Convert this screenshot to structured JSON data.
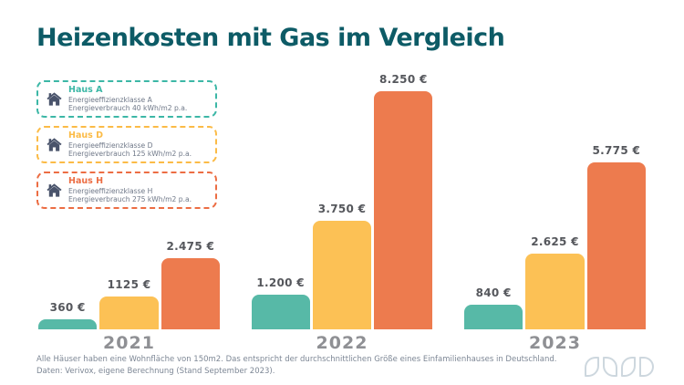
{
  "title": "Heizenkosten mit Gas im Vergleich",
  "colors": {
    "title": "#0d5b66",
    "house_icon": "#49536b",
    "value_label": "#55575c",
    "year_label": "#8f9094",
    "footer_text": "#7d8795",
    "logo": "#cdd7de",
    "background": "#ffffff"
  },
  "legend": {
    "items": [
      {
        "name": "Haus A",
        "line1": "Energieeffizienzklasse A",
        "line2": "Energieverbrauch 40 kWh/m2 p.a.",
        "color": "#3cb7a6"
      },
      {
        "name": "Haus D",
        "line1": "Energieeffizienzklasse D",
        "line2": "Energieverbrauch 125 kWh/m2 p.a.",
        "color": "#fbbb46"
      },
      {
        "name": "Haus H",
        "line1": "Energieeffizienzklasse H",
        "line2": "Energieverbrauch 275 kWh/m2 p.a.",
        "color": "#ec6d43"
      }
    ]
  },
  "chart_data": {
    "type": "bar",
    "title": "Heizenkosten mit Gas im Vergleich",
    "categories": [
      "2021",
      "2022",
      "2023"
    ],
    "series": [
      {
        "name": "Haus A",
        "color": "#57b9a7",
        "values": [
          360,
          1200,
          840
        ],
        "labels": [
          "360 €",
          "1.200 €",
          "840 €"
        ]
      },
      {
        "name": "Haus D",
        "color": "#fcc155",
        "values": [
          1125,
          3750,
          2625
        ],
        "labels": [
          "1125 €",
          "3.750 €",
          "2.625 €"
        ]
      },
      {
        "name": "Haus H",
        "color": "#ed7b4e",
        "values": [
          2475,
          8250,
          5775
        ],
        "labels": [
          "2.475 €",
          "8.250 €",
          "5.775 €"
        ]
      }
    ],
    "xlabel": "",
    "ylabel": "",
    "unit": "€",
    "ylim": [
      0,
      8250
    ],
    "grid": false,
    "legend_position": "upper-left"
  },
  "footer": {
    "line1": "Alle Häuser haben eine Wohnfläche von 150m2. Das entspricht der durchschnittlichen Größe eines Einfamilienhauses in Deutschland.",
    "line2": "Daten: Verivox, eigene Berechnung (Stand September 2023)."
  }
}
